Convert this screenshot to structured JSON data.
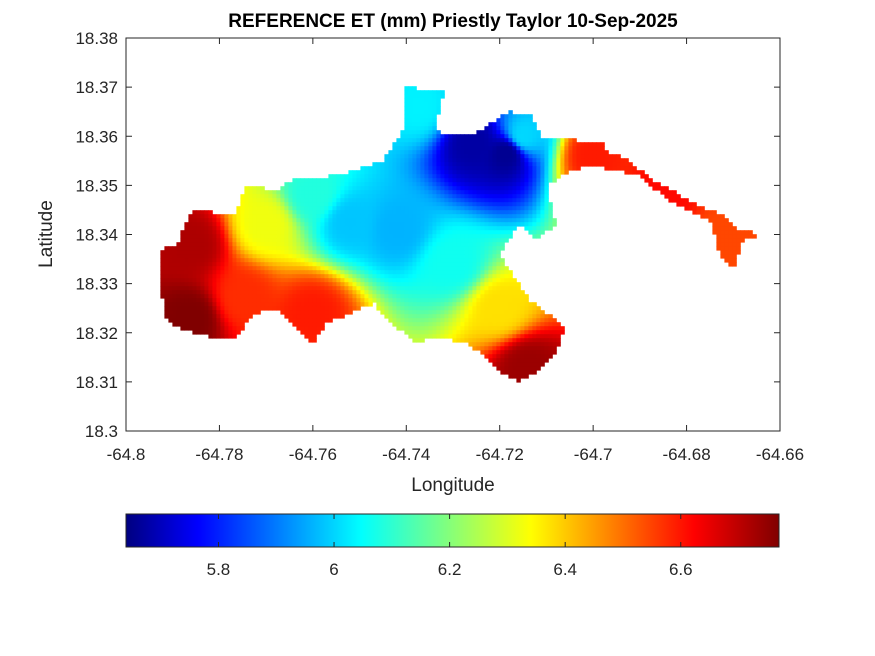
{
  "chart_data": {
    "type": "heatmap",
    "title": "REFERENCE ET (mm) Priestly Taylor 10-Sep-2025",
    "xlabel": "Longitude",
    "ylabel": "Latitude",
    "xlim": [
      -64.8,
      -64.66
    ],
    "ylim": [
      18.3,
      18.38
    ],
    "xticks": [
      "-64.8",
      "-64.78",
      "-64.76",
      "-64.74",
      "-64.72",
      "-64.7",
      "-64.68",
      "-64.66"
    ],
    "yticks": [
      "18.3",
      "18.31",
      "18.32",
      "18.33",
      "18.34",
      "18.35",
      "18.36",
      "18.37",
      "18.38"
    ],
    "colormap": "jet",
    "colorbar": {
      "orientation": "horizontal",
      "location": "bottom",
      "range": [
        5.64,
        6.77
      ],
      "ticks": [
        "5.8",
        "6",
        "6.2",
        "6.4",
        "6.6"
      ]
    },
    "grid": false,
    "field": {
      "description": "spatial field of reference ET over the island",
      "boundary": [
        [
          -64.792,
          18.324
        ],
        [
          -64.793,
          18.337
        ],
        [
          -64.789,
          18.338
        ],
        [
          -64.786,
          18.345
        ],
        [
          -64.777,
          18.344
        ],
        [
          -64.774,
          18.35
        ],
        [
          -64.768,
          18.349
        ],
        [
          -64.765,
          18.351
        ],
        [
          -64.755,
          18.352
        ],
        [
          -64.745,
          18.355
        ],
        [
          -64.74,
          18.362
        ],
        [
          -64.74,
          18.37
        ],
        [
          -64.732,
          18.369
        ],
        [
          -64.734,
          18.361
        ],
        [
          -64.726,
          18.36
        ],
        [
          -64.718,
          18.365
        ],
        [
          -64.713,
          18.364
        ],
        [
          -64.711,
          18.36
        ],
        [
          -64.702,
          18.359
        ],
        [
          -64.697,
          18.359
        ],
        [
          -64.698,
          18.357
        ],
        [
          -64.694,
          18.356
        ],
        [
          -64.687,
          18.351
        ],
        [
          -64.683,
          18.349
        ],
        [
          -64.678,
          18.346
        ],
        [
          -64.672,
          18.344
        ],
        [
          -64.669,
          18.341
        ],
        [
          -64.663,
          18.34
        ],
        [
          -64.668,
          18.339
        ],
        [
          -64.67,
          18.333
        ],
        [
          -64.673,
          18.336
        ],
        [
          -64.675,
          18.343
        ],
        [
          -64.684,
          18.347
        ],
        [
          -64.69,
          18.352
        ],
        [
          -64.7,
          18.354
        ],
        [
          -64.705,
          18.353
        ],
        [
          -64.71,
          18.35
        ],
        [
          -64.708,
          18.342
        ],
        [
          -64.712,
          18.339
        ],
        [
          -64.716,
          18.342
        ],
        [
          -64.72,
          18.336
        ],
        [
          -64.714,
          18.327
        ],
        [
          -64.706,
          18.321
        ],
        [
          -64.708,
          18.316
        ],
        [
          -64.712,
          18.312
        ],
        [
          -64.716,
          18.31
        ],
        [
          -64.72,
          18.312
        ],
        [
          -64.723,
          18.315
        ],
        [
          -64.727,
          18.318
        ],
        [
          -64.734,
          18.319
        ],
        [
          -64.738,
          18.318
        ],
        [
          -64.742,
          18.321
        ],
        [
          -64.747,
          18.326
        ],
        [
          -64.752,
          18.324
        ],
        [
          -64.757,
          18.322
        ],
        [
          -64.76,
          18.318
        ],
        [
          -64.764,
          18.321
        ],
        [
          -64.768,
          18.325
        ],
        [
          -64.772,
          18.324
        ],
        [
          -64.777,
          18.319
        ],
        [
          -64.781,
          18.319
        ],
        [
          -64.785,
          18.32
        ],
        [
          -64.789,
          18.321
        ]
      ],
      "centers": [
        {
          "lon": -64.7255,
          "lat": 18.3585,
          "value": 5.68
        },
        {
          "lon": -64.7185,
          "lat": 18.3565,
          "value": 5.66
        },
        {
          "lon": -64.715,
          "lat": 18.36,
          "value": 6.02
        },
        {
          "lon": -64.752,
          "lat": 18.3425,
          "value": 6.0
        },
        {
          "lon": -64.742,
          "lat": 18.341,
          "value": 5.98
        },
        {
          "lon": -64.73,
          "lat": 18.334,
          "value": 6.08
        },
        {
          "lon": -64.76,
          "lat": 18.348,
          "value": 6.1
        },
        {
          "lon": -64.77,
          "lat": 18.342,
          "value": 6.33
        },
        {
          "lon": -64.72,
          "lat": 18.325,
          "value": 6.38
        },
        {
          "lon": -64.786,
          "lat": 18.338,
          "value": 6.72
        },
        {
          "lon": -64.786,
          "lat": 18.323,
          "value": 6.77
        },
        {
          "lon": -64.714,
          "lat": 18.313,
          "value": 6.74
        },
        {
          "lon": -64.775,
          "lat": 18.327,
          "value": 6.58
        },
        {
          "lon": -64.671,
          "lat": 18.34,
          "value": 6.55
        },
        {
          "lon": -64.685,
          "lat": 18.348,
          "value": 6.62
        },
        {
          "lon": -64.7,
          "lat": 18.356,
          "value": 6.6
        },
        {
          "lon": -64.76,
          "lat": 18.324,
          "value": 6.6
        },
        {
          "lon": -64.737,
          "lat": 18.366,
          "value": 6.05
        }
      ]
    }
  }
}
